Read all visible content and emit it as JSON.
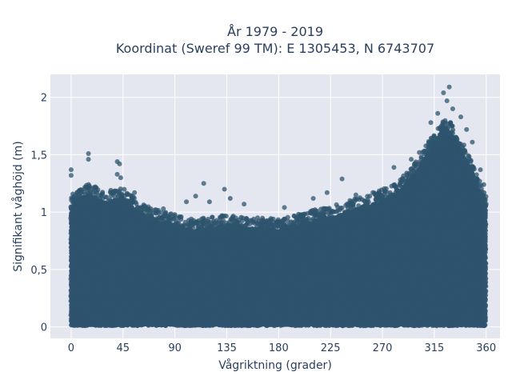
{
  "chart_data": {
    "type": "scatter",
    "title": "År 1979 - 2019",
    "subtitle": "Koordinat (Sweref 99 TM): E 1305453, N 6743707",
    "xlabel": "Vågriktning (grader)",
    "ylabel": "Signifikant våghöjd (m)",
    "xlim": [
      -18,
      372
    ],
    "ylim": [
      -0.1,
      2.2
    ],
    "xticks": [
      0,
      45,
      90,
      135,
      180,
      225,
      270,
      315,
      360
    ],
    "xtick_labels": [
      "0",
      "45",
      "90",
      "135",
      "180",
      "225",
      "270",
      "315",
      "360"
    ],
    "yticks": [
      0,
      0.5,
      1,
      1.5,
      2
    ],
    "ytick_labels": [
      "0",
      "0,5",
      "1",
      "1,5",
      "2"
    ],
    "grid": true,
    "marker_color": "#2e546e",
    "envelope": {
      "x": [
        0,
        15,
        30,
        45,
        60,
        75,
        90,
        105,
        120,
        135,
        150,
        165,
        180,
        195,
        210,
        225,
        240,
        255,
        270,
        285,
        300,
        315,
        325,
        335,
        345,
        360
      ],
      "upper": [
        1.05,
        1.15,
        1.08,
        1.12,
        0.98,
        0.92,
        0.88,
        0.84,
        0.86,
        0.88,
        0.86,
        0.85,
        0.84,
        0.88,
        0.92,
        0.95,
        1.0,
        1.05,
        1.1,
        1.18,
        1.35,
        1.6,
        1.75,
        1.6,
        1.4,
        1.05
      ],
      "lower": 0.02
    },
    "outliers": [
      {
        "x": 0,
        "y": 1.37
      },
      {
        "x": 0,
        "y": 1.32
      },
      {
        "x": 15,
        "y": 1.51
      },
      {
        "x": 15,
        "y": 1.46
      },
      {
        "x": 40,
        "y": 1.44
      },
      {
        "x": 42,
        "y": 1.42
      },
      {
        "x": 40,
        "y": 1.33
      },
      {
        "x": 43,
        "y": 1.3
      },
      {
        "x": 55,
        "y": 1.17
      },
      {
        "x": 80,
        "y": 1.03
      },
      {
        "x": 100,
        "y": 1.09
      },
      {
        "x": 108,
        "y": 1.14
      },
      {
        "x": 115,
        "y": 1.25
      },
      {
        "x": 120,
        "y": 1.09
      },
      {
        "x": 133,
        "y": 1.2
      },
      {
        "x": 138,
        "y": 1.12
      },
      {
        "x": 150,
        "y": 1.07
      },
      {
        "x": 185,
        "y": 1.04
      },
      {
        "x": 210,
        "y": 1.12
      },
      {
        "x": 222,
        "y": 1.17
      },
      {
        "x": 235,
        "y": 1.29
      },
      {
        "x": 247,
        "y": 1.15
      },
      {
        "x": 265,
        "y": 1.15
      },
      {
        "x": 280,
        "y": 1.39
      },
      {
        "x": 295,
        "y": 1.46
      },
      {
        "x": 302,
        "y": 1.52
      },
      {
        "x": 312,
        "y": 1.78
      },
      {
        "x": 318,
        "y": 1.86
      },
      {
        "x": 323,
        "y": 2.04
      },
      {
        "x": 328,
        "y": 2.09
      },
      {
        "x": 326,
        "y": 1.97
      },
      {
        "x": 331,
        "y": 1.9
      },
      {
        "x": 338,
        "y": 1.83
      },
      {
        "x": 343,
        "y": 1.72
      },
      {
        "x": 348,
        "y": 1.61
      },
      {
        "x": 355,
        "y": 1.37
      },
      {
        "x": 358,
        "y": 1.24
      },
      {
        "x": 360,
        "y": 1.07
      }
    ]
  }
}
